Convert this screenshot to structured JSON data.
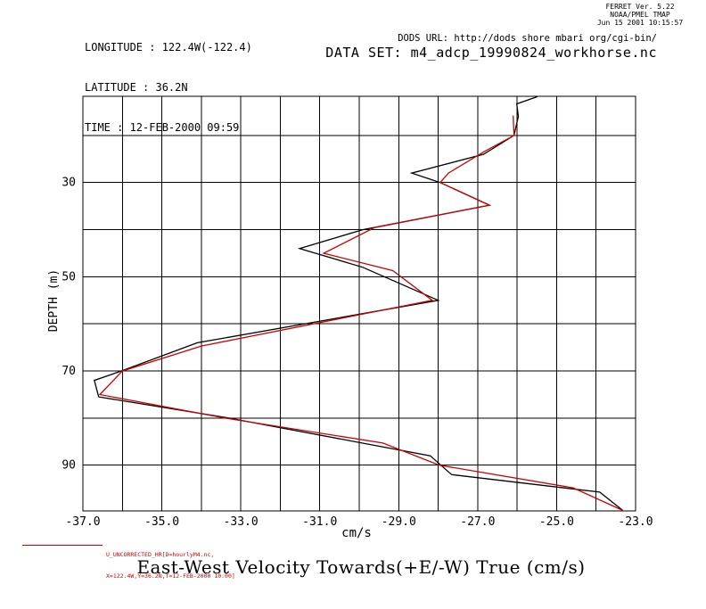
{
  "header": {
    "longitude": "LONGITUDE : 122.4W(-122.4)",
    "latitude": "LATITUDE : 36.2N",
    "time": "TIME : 12-FEB-2000 09:59",
    "ferret_version": "FERRET Ver. 5.22",
    "ferret_org": "NOAA/PMEL TMAP",
    "ferret_date": "Jun 15 2001 10:15:57",
    "dods_url": "DODS URL: http://dods shore mbari org/cgi-bin/",
    "data_set": "DATA SET: m4_adcp_19990824_workhorse.nc"
  },
  "legend": {
    "line1": "U_UNCORRECTED_HR[D=hourlyM4.nc,",
    "line2": "X=122.4W,Y=36.2N,T=12-FEB-2000 10:00]",
    "color": "#cc0000"
  },
  "title": "East-West Velocity Towards(+E/-W) True (cm/s)",
  "chart_data": {
    "type": "line",
    "title": "East-West Velocity Towards(+E/-W) True (cm/s)",
    "xlabel": "cm/s",
    "ylabel": "DEPTH (m)",
    "xlim": [
      -37,
      -23
    ],
    "depth_range": [
      11.7,
      99.7
    ],
    "grid": true,
    "x_gridlines": [
      -37,
      -36,
      -35,
      -34,
      -33,
      -32,
      -31,
      -30,
      -29,
      -28,
      -27,
      -26,
      -25,
      -24,
      -23
    ],
    "y_gridlines": [
      20,
      30,
      40,
      50,
      60,
      70,
      80,
      90
    ],
    "x_tick_values": [
      -37,
      -35,
      -33,
      -31,
      -29,
      -27,
      -25,
      -23
    ],
    "x_tick_labels": [
      "-37.0",
      "-35.0",
      "-33.0",
      "-31.0",
      "-29.0",
      "-27.0",
      "-25.0",
      "-23.0"
    ],
    "y_tick_values": [
      30,
      50,
      70,
      90
    ],
    "y_tick_labels": [
      "30",
      "50",
      "70",
      "90"
    ],
    "series": [
      {
        "name": "black",
        "color": "#000000",
        "points_u_depth": [
          [
            -25.49,
            11.8
          ],
          [
            -26.01,
            13.3
          ],
          [
            -25.97,
            16.0
          ],
          [
            -26.08,
            20.0
          ],
          [
            -26.85,
            24.0
          ],
          [
            -28.67,
            28.0
          ],
          [
            -27.95,
            30.0
          ],
          [
            -26.7,
            34.8
          ],
          [
            -29.9,
            40.0
          ],
          [
            -31.51,
            44.0
          ],
          [
            -29.91,
            48.0
          ],
          [
            -28.0,
            55.0
          ],
          [
            -34.1,
            64.0
          ],
          [
            -36.03,
            70.0
          ],
          [
            -36.71,
            72.0
          ],
          [
            -36.6,
            75.5
          ],
          [
            -33.3,
            80.0
          ],
          [
            -28.2,
            88.0
          ],
          [
            -27.66,
            92.0
          ],
          [
            -23.91,
            95.7
          ],
          [
            -23.32,
            99.6
          ]
        ]
      },
      {
        "name": "red",
        "color": "#cc0000",
        "points_u_depth": [
          [
            -26.1,
            15.8
          ],
          [
            -26.08,
            20.0
          ],
          [
            -26.85,
            23.5
          ],
          [
            -27.74,
            28.0
          ],
          [
            -27.95,
            30.0
          ],
          [
            -26.7,
            34.8
          ],
          [
            -29.62,
            39.6
          ],
          [
            -30.9,
            45.0
          ],
          [
            -29.15,
            48.7
          ],
          [
            -28.15,
            55.0
          ],
          [
            -34.0,
            64.7
          ],
          [
            -36.0,
            70.0
          ],
          [
            -36.57,
            75.0
          ],
          [
            -33.4,
            80.0
          ],
          [
            -29.4,
            85.3
          ],
          [
            -27.97,
            90.0
          ],
          [
            -24.58,
            94.8
          ],
          [
            -23.32,
            99.6
          ]
        ]
      }
    ]
  }
}
